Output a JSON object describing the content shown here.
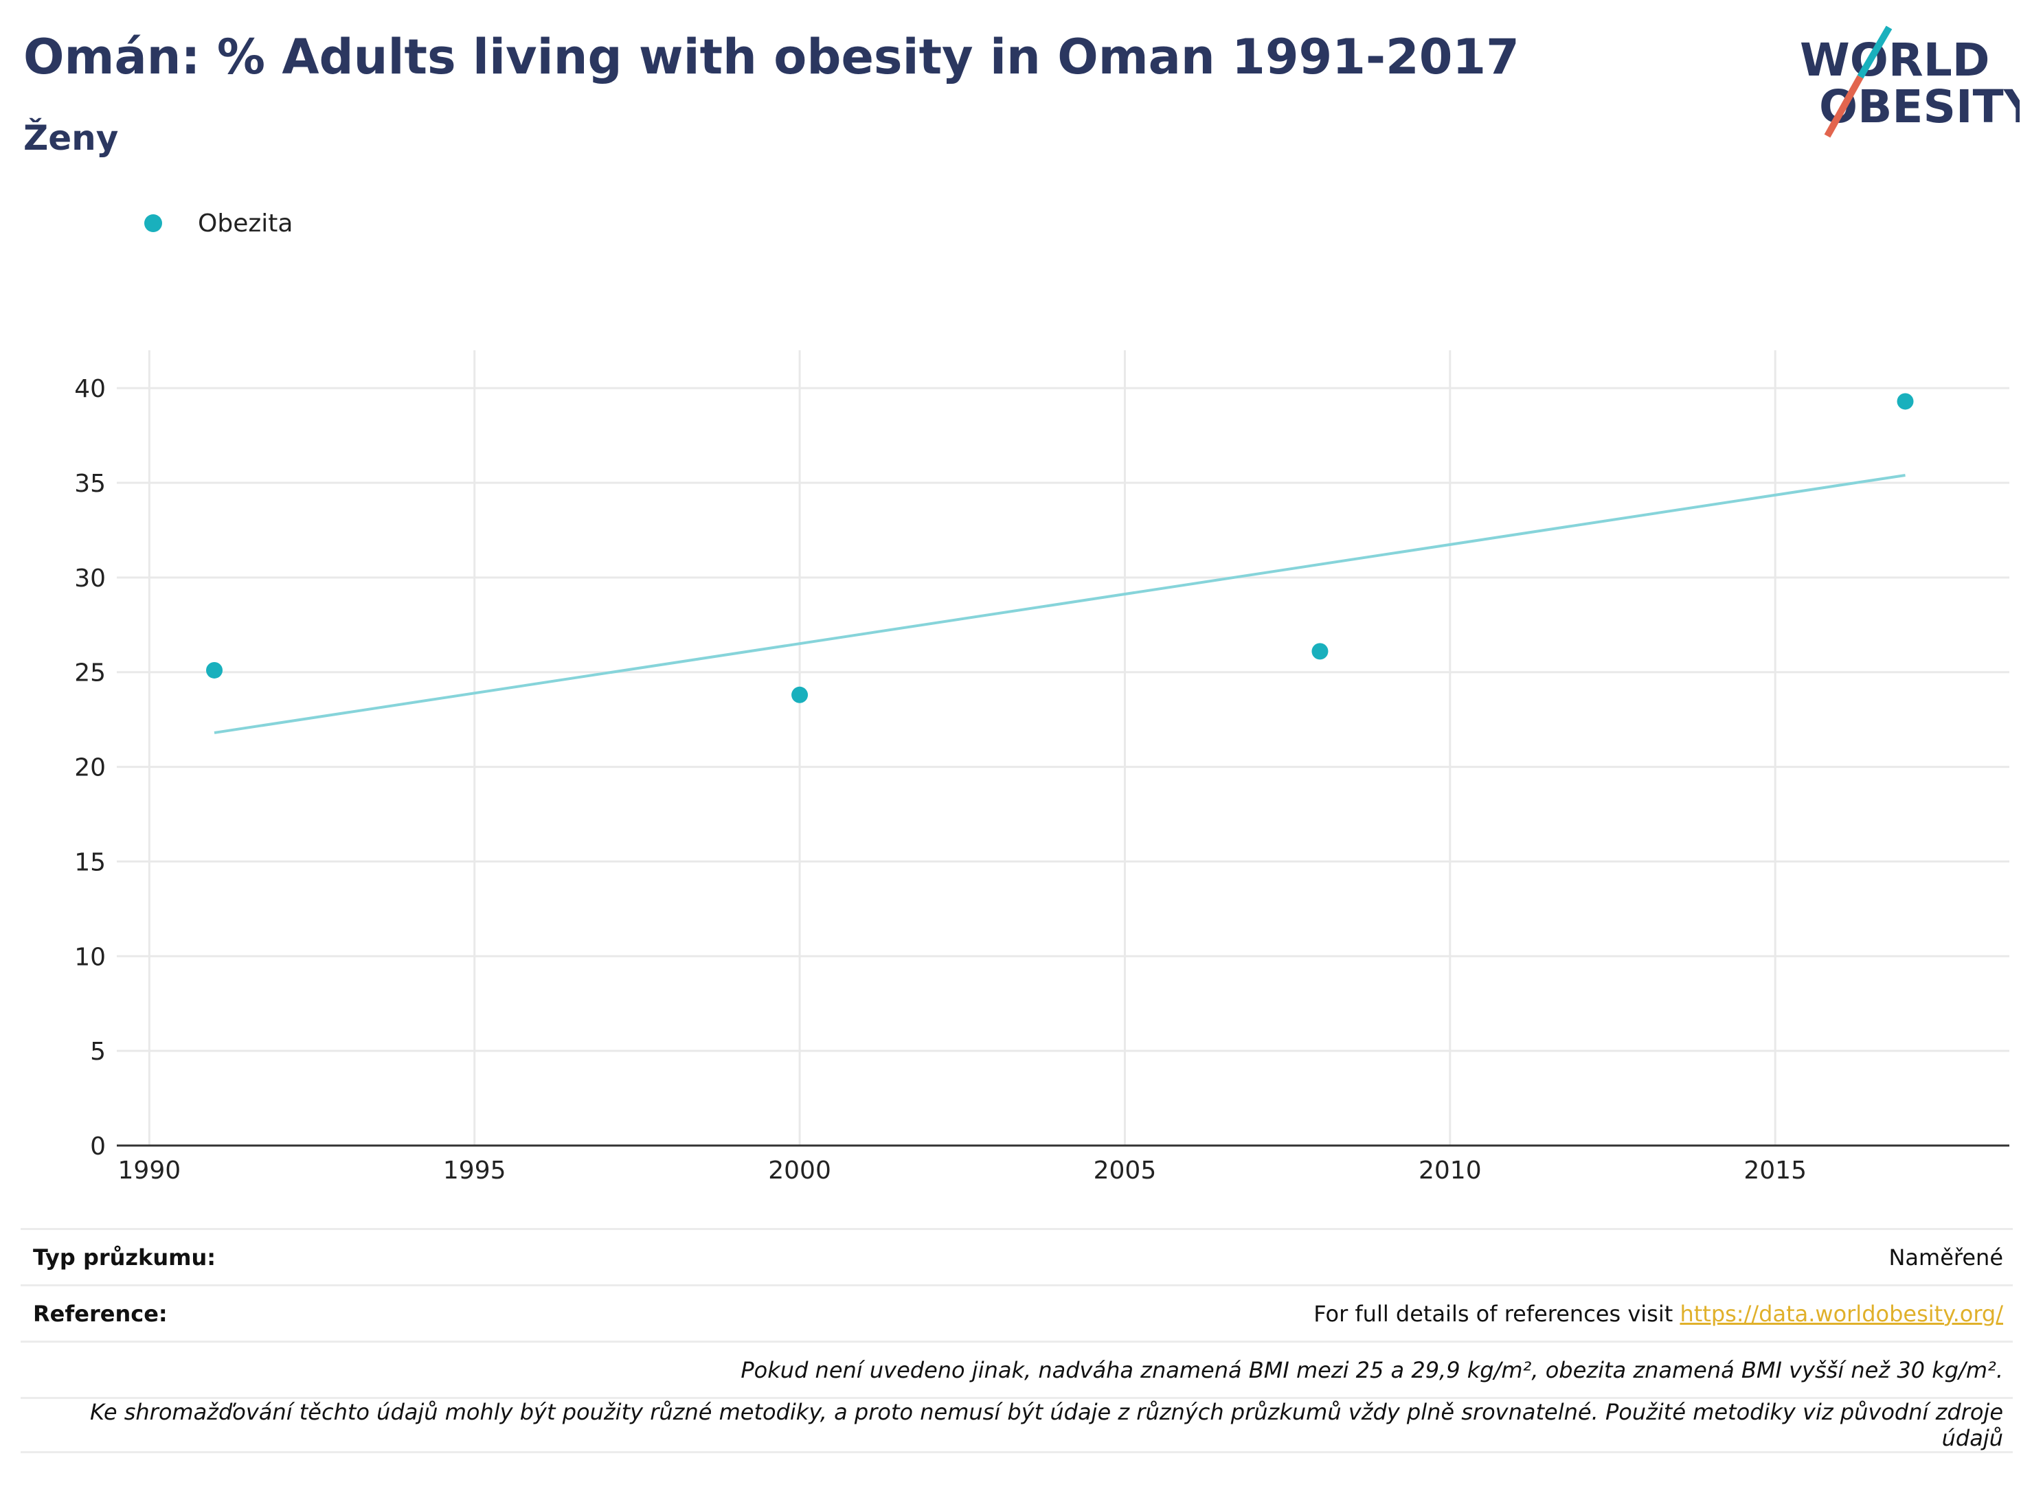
{
  "header": {
    "title": "Omán: % Adults living with obesity in Oman 1991-2017",
    "subtitle": "Ženy"
  },
  "logo": {
    "line1": "WORLD",
    "line2": "OBESITY"
  },
  "colors": {
    "accent": "#19b0bd",
    "trend": "#86d4da",
    "title": "#2b3760",
    "link": "#e0b02a",
    "logo_red": "#e2654e"
  },
  "chart_data": {
    "type": "scatter",
    "series": [
      {
        "name": "Obezita",
        "x": [
          1991,
          2000,
          2008,
          2017
        ],
        "y": [
          25.1,
          23.8,
          26.1,
          39.3
        ]
      }
    ],
    "trendline": {
      "x": [
        1991,
        2017
      ],
      "y": [
        21.8,
        35.4
      ]
    },
    "xlim": [
      1989.5,
      2018.6
    ],
    "ylim": [
      0,
      42
    ],
    "xticks": [
      1990,
      1995,
      2000,
      2005,
      2010,
      2015
    ],
    "yticks": [
      0,
      5,
      10,
      15,
      20,
      25,
      30,
      35,
      40
    ],
    "grid": true,
    "legend": "top-left"
  },
  "footer": {
    "survey_label": "Typ průzkumu:",
    "survey_value": "Naměřené",
    "reference_label": "Reference:",
    "reference_text": "For full details of references visit ",
    "reference_link": "https://data.worldobesity.org/",
    "note1": "Pokud není uvedeno jinak, nadváha znamená BMI mezi 25 a 29,9 kg/m², obezita znamená BMI vyšší než 30 kg/m².",
    "note2": "Ke shromažďování těchto údajů mohly být použity různé metodiky, a proto nemusí být údaje z různých průzkumů vždy plně srovnatelné. Použité metodiky viz původní zdroje údajů"
  }
}
